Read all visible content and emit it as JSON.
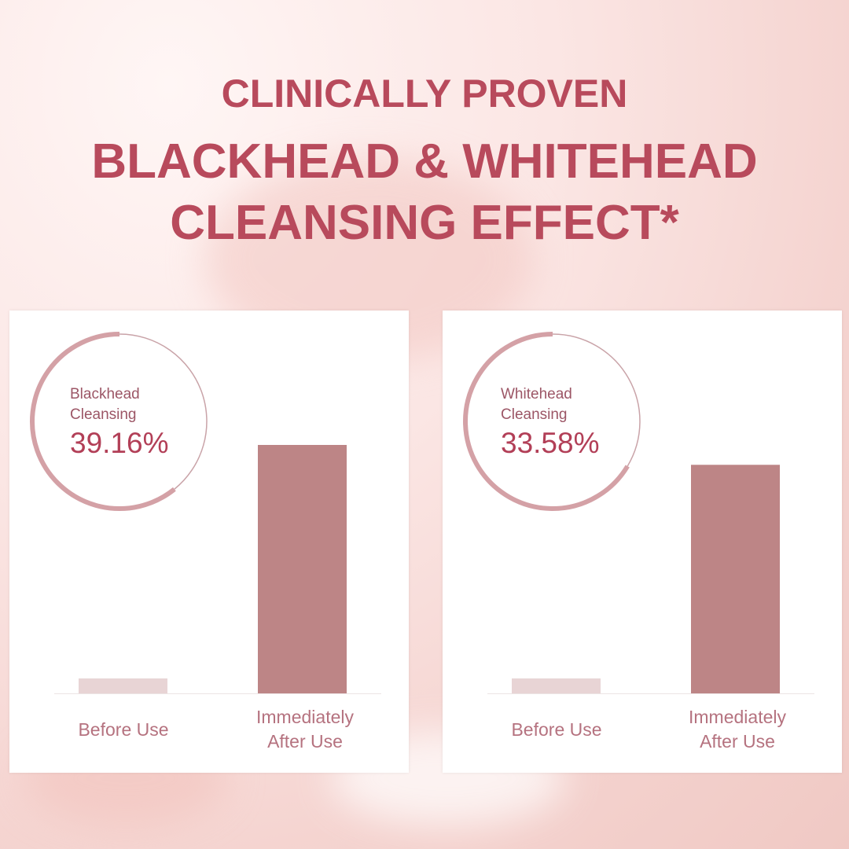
{
  "header": {
    "line1": "CLINICALLY PROVEN",
    "line2": "BLACKHEAD & WHITEHEAD",
    "line3": "CLEANSING EFFECT*"
  },
  "colors": {
    "title": "#b84a5c",
    "bar_after": "#bd8586",
    "bar_before": "#e8d4d5",
    "ring": "#d4a1a6"
  },
  "chart_data": [
    {
      "type": "bar",
      "ring_label_1": "Blackhead",
      "ring_label_2": "Cleansing",
      "ring_value": "39.16%",
      "ring_percent": 39.16,
      "categories": [
        "Before Use",
        "Immediately After Use"
      ],
      "category_lines": [
        [
          "Before Use"
        ],
        [
          "Immediately",
          "After Use"
        ]
      ],
      "values": [
        6,
        100
      ],
      "ylim": [
        0,
        100
      ],
      "grid": false
    },
    {
      "type": "bar",
      "ring_label_1": "Whitehead",
      "ring_label_2": "Cleansing",
      "ring_value": "33.58%",
      "ring_percent": 33.58,
      "categories": [
        "Before Use",
        "Immediately After Use"
      ],
      "category_lines": [
        [
          "Before Use"
        ],
        [
          "Immediately",
          "After Use"
        ]
      ],
      "values": [
        6,
        92
      ],
      "ylim": [
        0,
        100
      ],
      "grid": false
    }
  ]
}
